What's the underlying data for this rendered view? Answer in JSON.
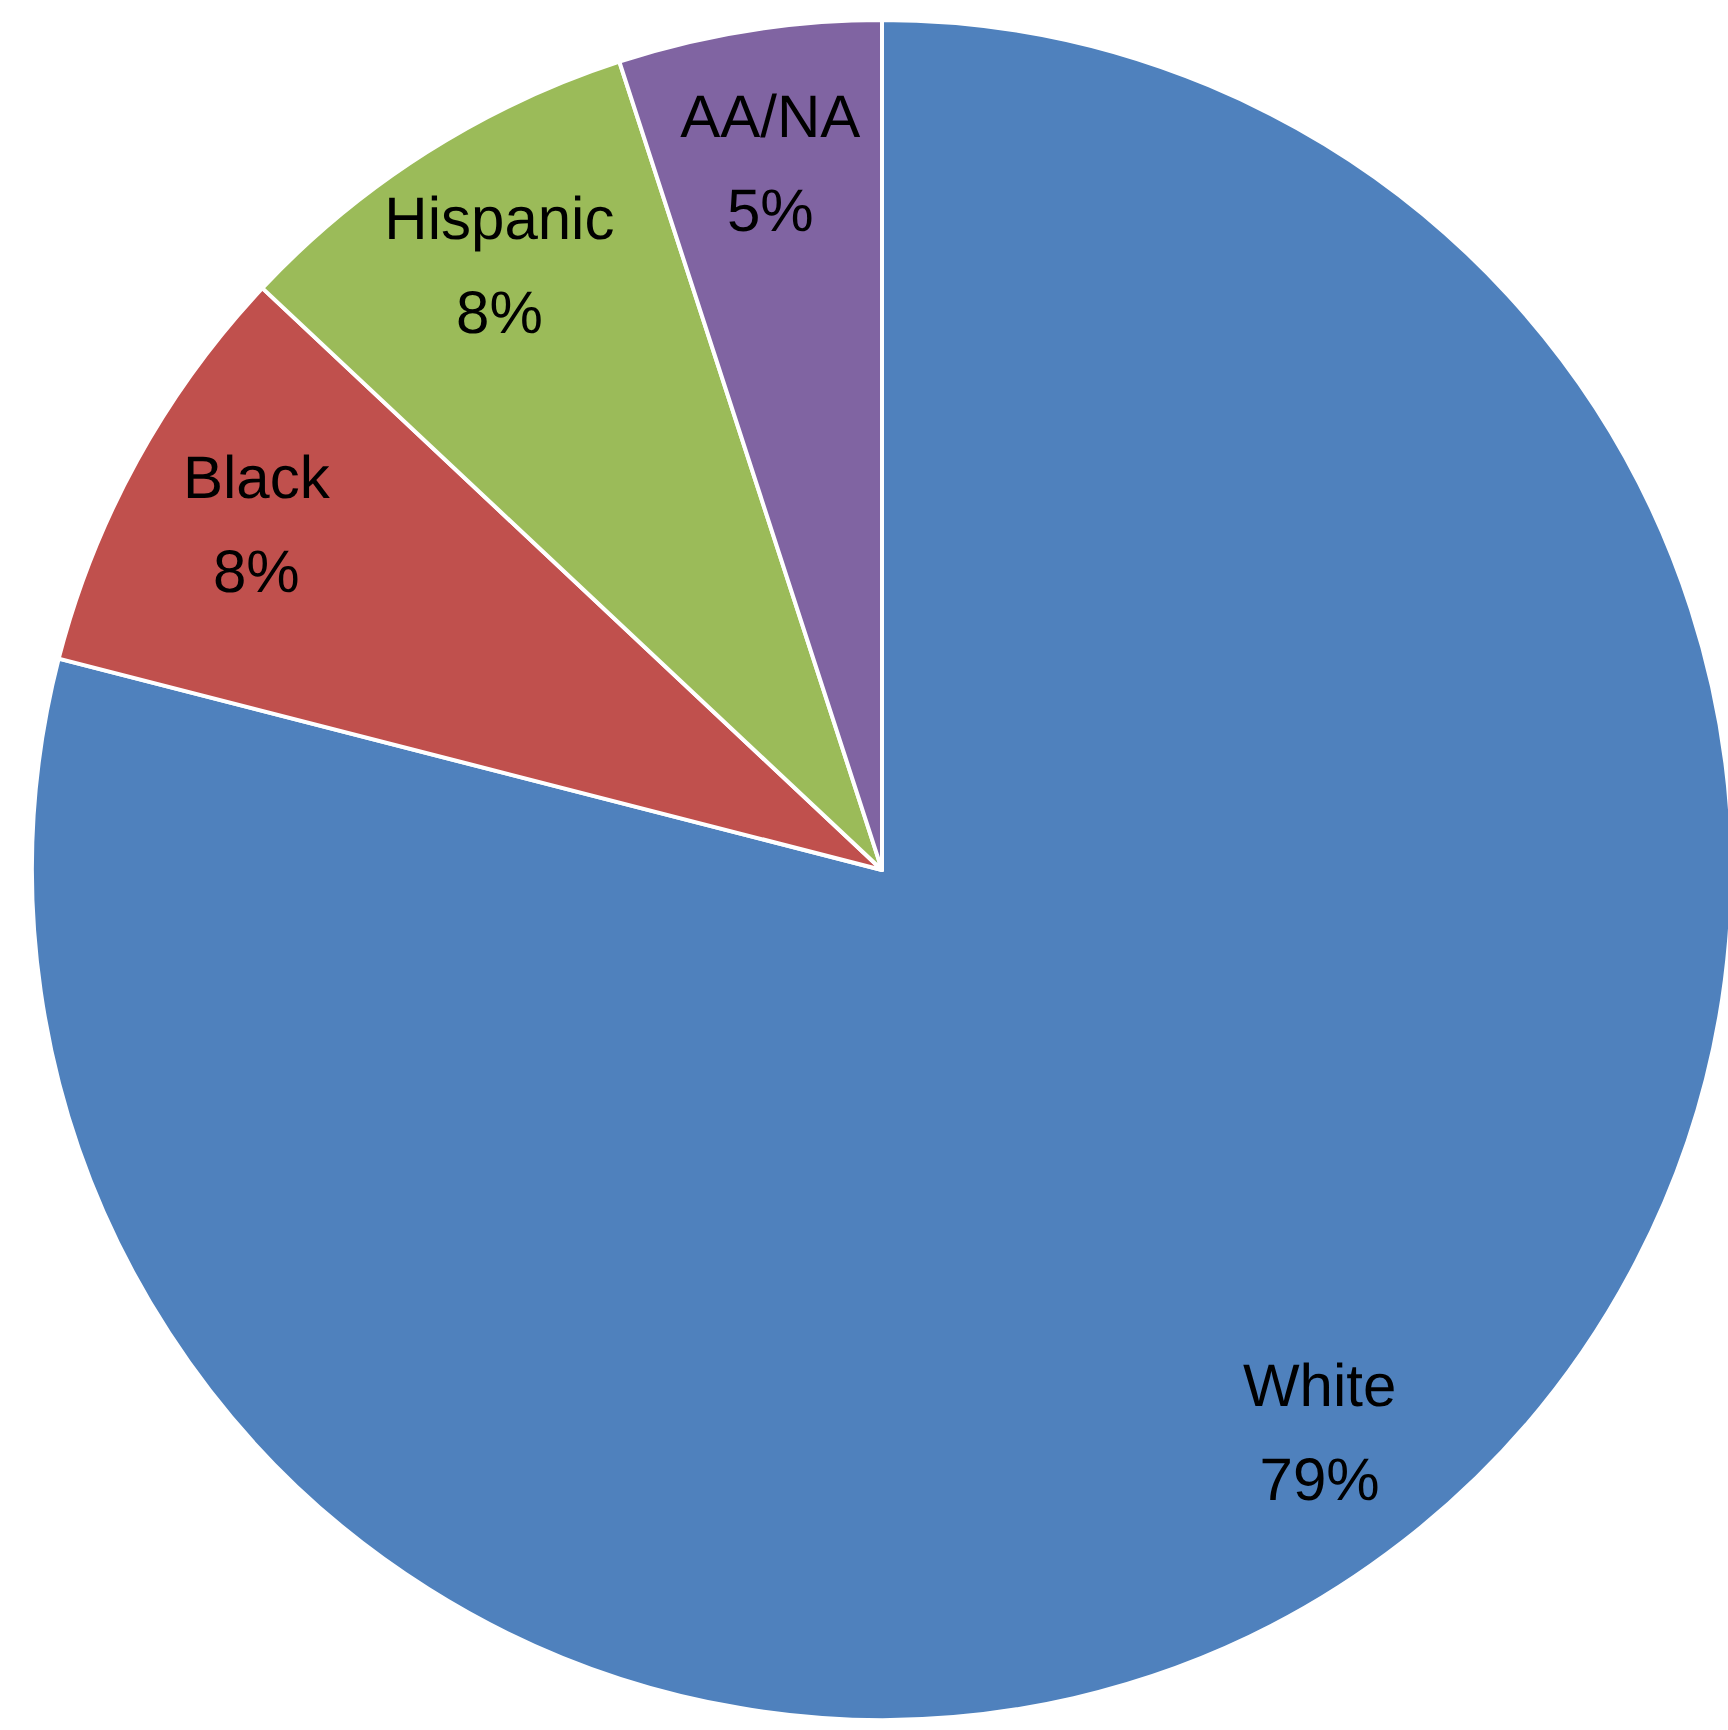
{
  "chart_data": {
    "type": "pie",
    "categories": [
      "White",
      "Black",
      "Hispanic",
      "AA/NA"
    ],
    "values": [
      79,
      8,
      8,
      5
    ],
    "value_labels": [
      "79%",
      "8%",
      "8%",
      "5%"
    ],
    "colors": [
      "#4f81bd",
      "#c0504d",
      "#9bbb59",
      "#8064a2"
    ]
  }
}
